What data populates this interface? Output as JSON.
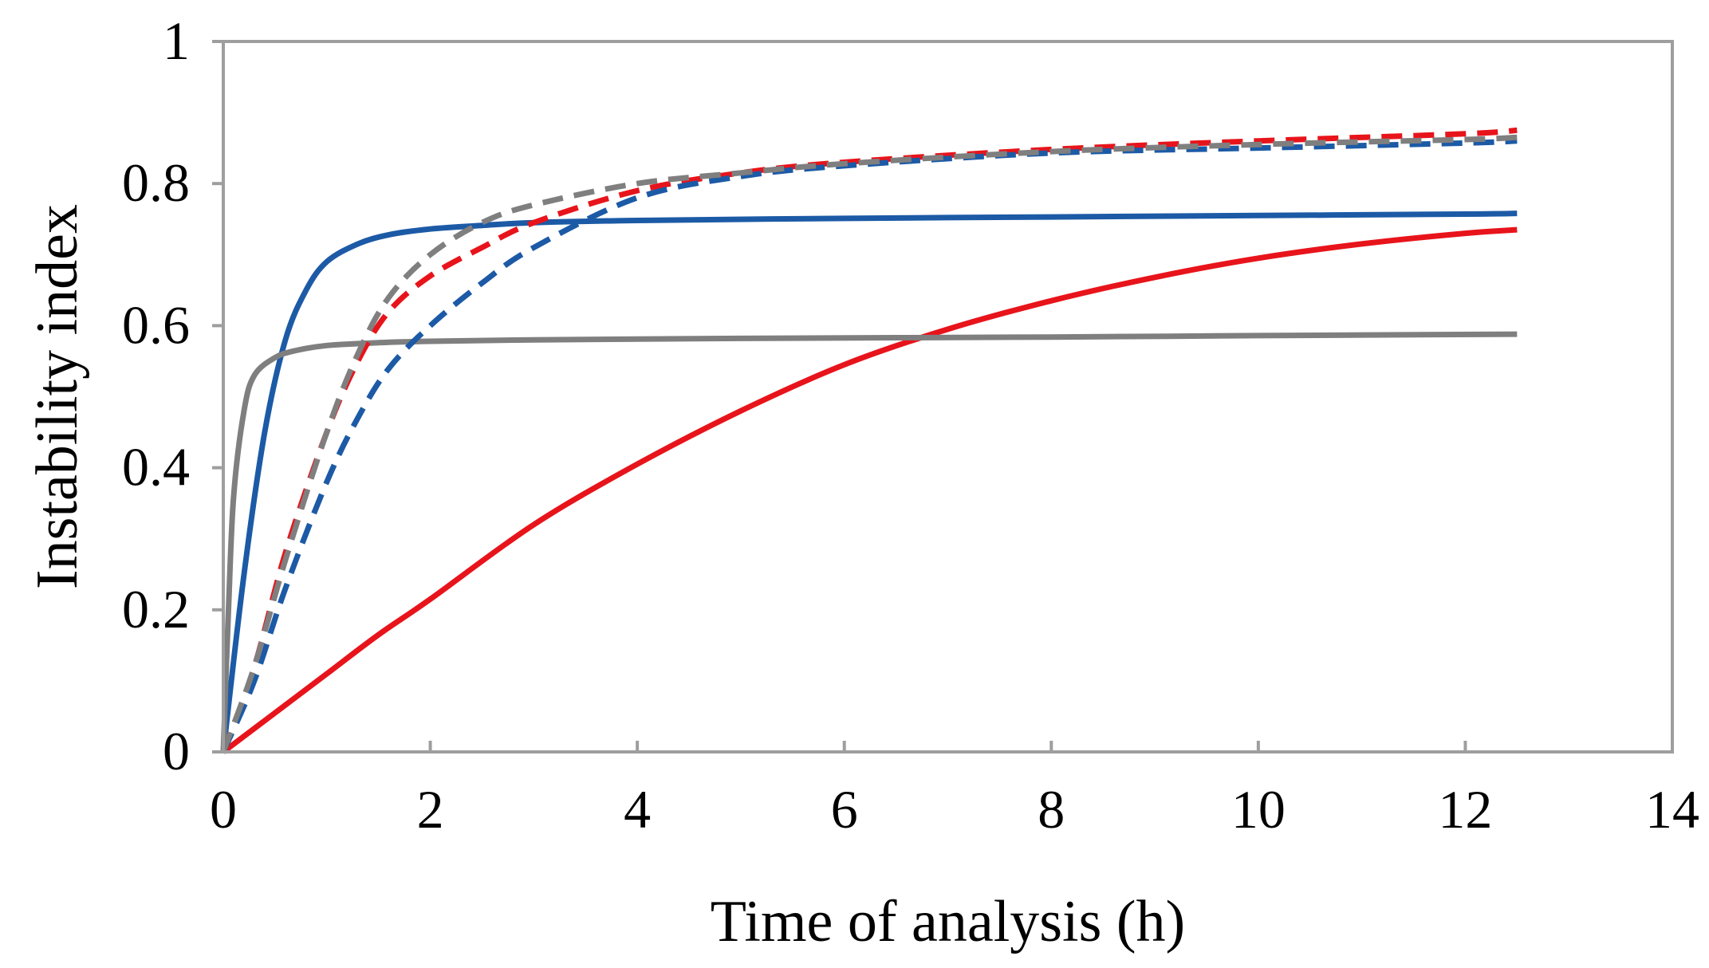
{
  "chart_data": {
    "type": "line",
    "title": "",
    "xlabel": "Time of analysis (h)",
    "ylabel": "Instability index",
    "xlim": [
      0,
      14
    ],
    "ylim": [
      0,
      1
    ],
    "xticks": [
      0,
      2,
      4,
      6,
      8,
      10,
      12,
      14
    ],
    "yticks": [
      0,
      0.2,
      0.4,
      0.6,
      0.8,
      1
    ],
    "x_tick_labels": [
      "0",
      "2",
      "4",
      "6",
      "8",
      "10",
      "12",
      "14"
    ],
    "y_tick_labels": [
      "0",
      "0.2",
      "0.4",
      "0.6",
      "0.8",
      "1"
    ],
    "legend": "none",
    "grid": false,
    "series": [
      {
        "name": "red-solid",
        "color": "#e8141b",
        "dashed": false,
        "x": [
          0,
          0.5,
          1,
          1.5,
          2,
          3,
          4,
          5,
          6,
          7,
          8,
          9,
          10,
          11,
          12,
          12.5
        ],
        "y": [
          0,
          0.055,
          0.11,
          0.165,
          0.215,
          0.32,
          0.405,
          0.48,
          0.545,
          0.595,
          0.635,
          0.668,
          0.695,
          0.715,
          0.73,
          0.735
        ]
      },
      {
        "name": "blue-solid",
        "color": "#1c5aa6",
        "dashed": false,
        "x": [
          0,
          0.2,
          0.4,
          0.6,
          0.8,
          1,
          1.3,
          1.6,
          2,
          2.5,
          3,
          4,
          6,
          8,
          10,
          12,
          12.5
        ],
        "y": [
          0,
          0.25,
          0.45,
          0.58,
          0.65,
          0.69,
          0.715,
          0.728,
          0.736,
          0.741,
          0.745,
          0.748,
          0.751,
          0.753,
          0.755,
          0.757,
          0.758
        ]
      },
      {
        "name": "gray-solid",
        "color": "#7f7f7f",
        "dashed": false,
        "x": [
          0,
          0.05,
          0.1,
          0.2,
          0.3,
          0.5,
          0.7,
          1,
          1.5,
          2,
          3,
          5,
          8,
          10,
          12.5
        ],
        "y": [
          0,
          0.2,
          0.36,
          0.48,
          0.53,
          0.555,
          0.565,
          0.572,
          0.576,
          0.578,
          0.58,
          0.582,
          0.584,
          0.586,
          0.588
        ]
      },
      {
        "name": "red-dashed",
        "color": "#e8141b",
        "dashed": true,
        "x": [
          0,
          0.3,
          0.6,
          1,
          1.3,
          1.6,
          2,
          2.5,
          3,
          4,
          5,
          6,
          8,
          10,
          12,
          12.5
        ],
        "y": [
          0,
          0.12,
          0.28,
          0.45,
          0.55,
          0.62,
          0.67,
          0.71,
          0.745,
          0.79,
          0.815,
          0.83,
          0.848,
          0.86,
          0.87,
          0.875
        ]
      },
      {
        "name": "blue-dashed",
        "color": "#1c5aa6",
        "dashed": true,
        "x": [
          0,
          0.3,
          0.6,
          1,
          1.3,
          1.6,
          2,
          2.5,
          3,
          4,
          5,
          6,
          8,
          10,
          12,
          12.5
        ],
        "y": [
          0,
          0.1,
          0.23,
          0.38,
          0.47,
          0.54,
          0.6,
          0.66,
          0.71,
          0.78,
          0.81,
          0.825,
          0.843,
          0.85,
          0.857,
          0.86
        ]
      },
      {
        "name": "gray-dashed",
        "color": "#7f7f7f",
        "dashed": true,
        "x": [
          0,
          0.3,
          0.6,
          1,
          1.3,
          1.6,
          2,
          2.5,
          3,
          4,
          5,
          6,
          8,
          10,
          12,
          12.5
        ],
        "y": [
          0,
          0.12,
          0.27,
          0.45,
          0.56,
          0.64,
          0.7,
          0.745,
          0.77,
          0.8,
          0.815,
          0.828,
          0.845,
          0.855,
          0.862,
          0.865
        ]
      }
    ]
  }
}
